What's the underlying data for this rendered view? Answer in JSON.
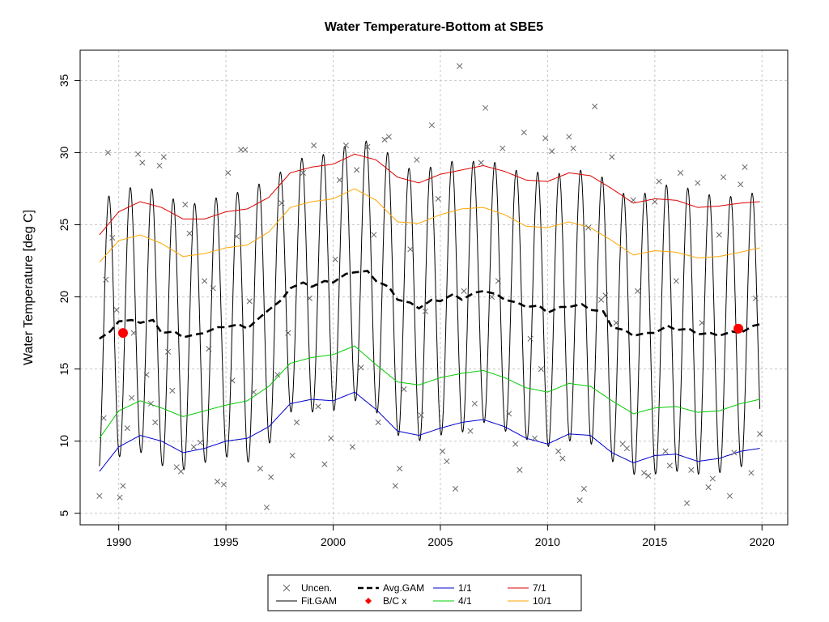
{
  "chart_data": {
    "type": "line",
    "title": "Water Temperature-Bottom at SBE5",
    "xlabel": "",
    "ylabel": "Water Temperature [deg C]",
    "xlim": [
      1988.2,
      2021.2
    ],
    "ylim": [
      4.2,
      37.1
    ],
    "x_ticks": [
      1990,
      1995,
      2000,
      2005,
      2010,
      2015,
      2020
    ],
    "y_ticks": [
      5,
      10,
      15,
      20,
      25,
      30,
      35
    ],
    "grid": true,
    "legend": {
      "position": "bottom",
      "entries": [
        {
          "label": "Uncen.",
          "marker": "x",
          "color": "#666666"
        },
        {
          "label": "Fit.GAM",
          "marker": "line",
          "color": "#000000"
        },
        {
          "label": "Avg.GAM",
          "marker": "dashed",
          "color": "#000000"
        },
        {
          "label": "B/C x",
          "marker": "diamond",
          "color": "#ff0000"
        },
        {
          "label": "1/1",
          "marker": "line",
          "color": "#0000cc"
        },
        {
          "label": "4/1",
          "marker": "line",
          "color": "#00cc00"
        },
        {
          "label": "7/1",
          "marker": "line",
          "color": "#dd0000"
        },
        {
          "label": "10/1",
          "marker": "line",
          "color": "#ffa500"
        }
      ]
    },
    "series": [
      {
        "name": "1/1",
        "color": "#0000cc",
        "x": [
          1989.1,
          1990,
          1991,
          1992,
          1993,
          1994,
          1995,
          1996,
          1997,
          1998,
          1999,
          2000,
          2001,
          2002,
          2003,
          2004,
          2005,
          2006,
          2007,
          2008,
          2009,
          2010,
          2011,
          2012,
          2013,
          2014,
          2015,
          2016,
          2017,
          2018,
          2019,
          2019.9
        ],
        "y": [
          7.9,
          9.6,
          10.4,
          10.0,
          9.2,
          9.5,
          10.0,
          10.2,
          11.0,
          12.6,
          12.9,
          12.8,
          13.4,
          12.2,
          10.7,
          10.4,
          10.9,
          11.3,
          11.5,
          11.0,
          10.2,
          9.8,
          10.5,
          10.4,
          9.2,
          8.5,
          9.0,
          9.1,
          8.6,
          8.8,
          9.3,
          9.5
        ]
      },
      {
        "name": "4/1",
        "color": "#00cc00",
        "x": [
          1989.1,
          1990,
          1991,
          1992,
          1993,
          1994,
          1995,
          1996,
          1997,
          1998,
          1999,
          2000,
          2001,
          2002,
          2003,
          2004,
          2005,
          2006,
          2007,
          2008,
          2009,
          2010,
          2011,
          2012,
          2013,
          2014,
          2015,
          2016,
          2017,
          2018,
          2019,
          2019.9
        ],
        "y": [
          10.2,
          12.1,
          12.8,
          12.3,
          11.7,
          12.1,
          12.5,
          12.8,
          13.8,
          15.4,
          15.8,
          16.0,
          16.6,
          15.3,
          14.1,
          13.9,
          14.4,
          14.7,
          14.9,
          14.4,
          13.7,
          13.4,
          14.0,
          13.8,
          12.8,
          11.9,
          12.3,
          12.4,
          12.0,
          12.1,
          12.6,
          12.9
        ]
      },
      {
        "name": "7/1",
        "color": "#dd0000",
        "x": [
          1989.1,
          1990,
          1991,
          1992,
          1993,
          1994,
          1995,
          1996,
          1997,
          1998,
          1999,
          2000,
          2001,
          2002,
          2003,
          2004,
          2005,
          2006,
          2007,
          2008,
          2009,
          2010,
          2011,
          2012,
          2013,
          2014,
          2015,
          2016,
          2017,
          2018,
          2019,
          2019.9
        ],
        "y": [
          24.3,
          25.9,
          26.6,
          26.2,
          25.4,
          25.4,
          25.9,
          26.1,
          26.9,
          28.6,
          29.0,
          29.2,
          29.9,
          29.5,
          28.3,
          27.9,
          28.5,
          28.8,
          29.1,
          28.7,
          28.1,
          28.0,
          28.6,
          28.4,
          27.5,
          26.5,
          26.8,
          26.7,
          26.2,
          26.3,
          26.5,
          26.6
        ]
      },
      {
        "name": "10/1",
        "color": "#ffa500",
        "x": [
          1989.1,
          1990,
          1991,
          1992,
          1993,
          1994,
          1995,
          1996,
          1997,
          1998,
          1999,
          2000,
          2001,
          2002,
          2003,
          2004,
          2005,
          2006,
          2007,
          2008,
          2009,
          2010,
          2011,
          2012,
          2013,
          2014,
          2015,
          2016,
          2017,
          2018,
          2019,
          2019.9
        ],
        "y": [
          22.4,
          23.9,
          24.3,
          23.7,
          22.8,
          23.0,
          23.4,
          23.6,
          24.5,
          26.2,
          26.6,
          26.8,
          27.5,
          26.7,
          25.2,
          25.1,
          25.7,
          26.1,
          26.2,
          25.7,
          24.9,
          24.8,
          25.2,
          24.8,
          23.9,
          22.9,
          23.2,
          23.1,
          22.7,
          22.8,
          23.1,
          23.4
        ]
      },
      {
        "name": "Avg.GAM",
        "color": "#000000",
        "dashed": true,
        "x": [
          1989.1,
          1989.6,
          1990,
          1990.6,
          1991,
          1991.6,
          1992,
          1992.6,
          1993,
          1993.6,
          1994,
          1994.6,
          1995,
          1995.6,
          1996,
          1996.6,
          1997,
          1997.6,
          1998,
          1998.6,
          1999,
          1999.6,
          2000,
          2000.6,
          2001,
          2001.6,
          2002,
          2002.6,
          2003,
          2003.6,
          2004,
          2004.6,
          2005,
          2005.6,
          2006,
          2006.6,
          2007,
          2007.6,
          2008,
          2008.6,
          2009,
          2009.6,
          2010,
          2010.6,
          2011,
          2011.6,
          2012,
          2012.6,
          2013,
          2013.6,
          2014,
          2014.6,
          2015,
          2015.6,
          2016,
          2016.6,
          2017,
          2017.6,
          2018,
          2018.6,
          2019,
          2019.6,
          2019.9
        ],
        "y": [
          17.1,
          17.6,
          18.3,
          18.4,
          18.2,
          18.4,
          17.5,
          17.6,
          17.2,
          17.4,
          17.5,
          17.9,
          17.9,
          18.1,
          17.8,
          18.6,
          19.1,
          19.8,
          20.6,
          21.0,
          20.7,
          21.1,
          21.0,
          21.6,
          21.7,
          21.8,
          21.1,
          20.7,
          19.8,
          19.6,
          19.2,
          19.8,
          19.7,
          20.2,
          19.8,
          20.3,
          20.4,
          20.2,
          19.8,
          19.6,
          19.3,
          19.4,
          18.9,
          19.3,
          19.3,
          19.5,
          19.1,
          19.0,
          17.9,
          17.7,
          17.3,
          17.5,
          17.5,
          18.0,
          17.7,
          17.8,
          17.4,
          17.5,
          17.3,
          17.6,
          17.5,
          18.0,
          18.1
        ]
      },
      {
        "name": "Fit.GAM",
        "color": "#000000",
        "seasonal": true,
        "x": [
          1989.1,
          1990,
          1991,
          1992,
          1993,
          1994,
          1995,
          1996,
          1997,
          1998,
          1999,
          2000,
          2001,
          2002,
          2003,
          2004,
          2005,
          2006,
          2007,
          2008,
          2009,
          2010,
          2011,
          2012,
          2013,
          2014,
          2015,
          2016,
          2017,
          2018,
          2019,
          2019.9
        ],
        "amplitude": [
          9.5,
          9.4,
          9.0,
          9.2,
          9.2,
          9.0,
          9.0,
          9.3,
          9.3,
          8.6,
          8.7,
          8.9,
          8.9,
          9.1,
          9.4,
          9.2,
          9.3,
          9.2,
          9.1,
          9.1,
          9.2,
          9.3,
          9.3,
          9.3,
          9.3,
          9.6,
          9.8,
          9.8,
          9.7,
          9.5,
          9.3,
          9.2
        ]
      }
    ],
    "uncensored_points": {
      "x": [
        1989.1,
        1989.3,
        1989.4,
        1989.5,
        1989.7,
        1989.9,
        1990.05,
        1990.2,
        1990.4,
        1990.6,
        1990.7,
        1990.9,
        1991.1,
        1991.3,
        1991.5,
        1991.7,
        1991.9,
        1992.1,
        1992.3,
        1992.5,
        1992.7,
        1992.9,
        1993.1,
        1993.3,
        1993.5,
        1993.8,
        1994.0,
        1994.2,
        1994.4,
        1994.6,
        1994.9,
        1995.1,
        1995.3,
        1995.5,
        1995.7,
        1995.9,
        1996.1,
        1996.3,
        1996.6,
        1996.9,
        1997.1,
        1997.4,
        1997.6,
        1997.9,
        1998.1,
        1998.3,
        1998.6,
        1998.9,
        1999.1,
        1999.3,
        1999.6,
        1999.9,
        2000.1,
        2000.3,
        2000.6,
        2000.9,
        2001.1,
        2001.3,
        2001.6,
        2001.9,
        2002.1,
        2002.4,
        2002.6,
        2002.9,
        2003.1,
        2003.3,
        2003.6,
        2003.9,
        2004.1,
        2004.3,
        2004.6,
        2004.9,
        2005.1,
        2005.3,
        2005.7,
        2005.9,
        2006.1,
        2006.4,
        2006.6,
        2006.9,
        2007.1,
        2007.4,
        2007.7,
        2007.9,
        2008.2,
        2008.5,
        2008.7,
        2008.9,
        2009.2,
        2009.4,
        2009.7,
        2009.9,
        2010.2,
        2010.5,
        2010.7,
        2011.0,
        2011.2,
        2011.5,
        2011.7,
        2011.9,
        2012.2,
        2012.5,
        2012.7,
        2013.0,
        2013.2,
        2013.5,
        2013.7,
        2014.0,
        2014.2,
        2014.5,
        2014.7,
        2015.0,
        2015.2,
        2015.5,
        2015.7,
        2016.0,
        2016.2,
        2016.5,
        2016.7,
        2017.0,
        2017.2,
        2017.5,
        2017.7,
        2018.0,
        2018.2,
        2018.5,
        2018.7,
        2019.0,
        2019.2,
        2019.5,
        2019.7,
        2019.9
      ],
      "y": [
        6.2,
        11.6,
        21.2,
        30.0,
        24.1,
        19.1,
        6.1,
        6.9,
        10.9,
        13.0,
        17.5,
        29.9,
        29.3,
        14.6,
        12.6,
        11.3,
        29.1,
        29.7,
        16.2,
        13.5,
        8.2,
        7.9,
        26.4,
        24.4,
        9.6,
        9.9,
        21.1,
        16.4,
        20.6,
        7.2,
        7.0,
        28.6,
        14.2,
        24.2,
        30.2,
        30.2,
        19.7,
        13.4,
        8.1,
        5.4,
        7.5,
        14.6,
        26.5,
        17.5,
        9.0,
        11.3,
        28.6,
        19.9,
        30.5,
        12.4,
        8.4,
        10.2,
        22.6,
        28.1,
        30.5,
        9.6,
        28.8,
        15.1,
        30.4,
        24.3,
        11.3,
        30.9,
        31.1,
        6.9,
        8.1,
        13.6,
        23.3,
        29.5,
        11.8,
        19.0,
        31.9,
        26.8,
        9.3,
        8.6,
        6.7,
        36.0,
        20.4,
        10.7,
        12.6,
        29.3,
        33.1,
        20.0,
        21.1,
        30.3,
        11.9,
        9.8,
        8.0,
        31.4,
        17.1,
        10.2,
        15.0,
        31.0,
        30.1,
        9.3,
        8.8,
        31.1,
        30.3,
        5.9,
        6.7,
        24.8,
        33.2,
        19.8,
        20.1,
        29.7,
        18.2,
        9.8,
        9.5,
        26.7,
        20.4,
        7.8,
        7.6,
        26.6,
        28.0,
        9.3,
        8.3,
        21.1,
        28.6,
        5.7,
        8.0,
        27.9,
        18.2,
        6.8,
        7.4,
        24.3,
        28.3,
        6.2,
        9.2,
        27.8,
        29.0,
        7.8,
        19.9,
        10.5
      ]
    },
    "bc_points": {
      "x": [
        1990.2,
        2018.9
      ],
      "y": [
        17.5,
        17.8
      ]
    }
  }
}
